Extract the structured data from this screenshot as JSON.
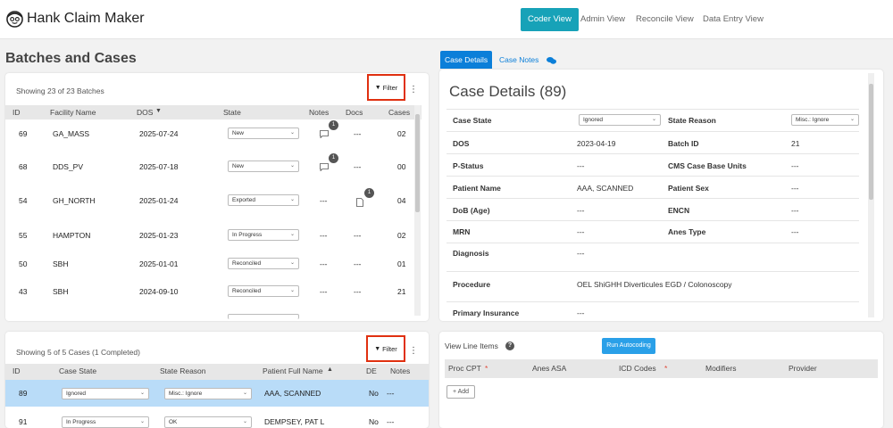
{
  "app": {
    "title": "Hank Claim Maker",
    "nav": [
      "Coder View",
      "Admin View",
      "Reconcile View",
      "Data Entry View"
    ]
  },
  "page": {
    "heading": "Batches and Cases"
  },
  "batches": {
    "showing": "Showing 23 of 23 Batches",
    "filter_label": "Filter",
    "columns": [
      "ID",
      "Facility Name",
      "DOS",
      "State",
      "Notes",
      "Docs",
      "Cases"
    ],
    "rows": [
      {
        "id": "69",
        "facility": "GA_MASS",
        "dos": "2025-07-24",
        "state": "New",
        "notes": "1",
        "docs": "---",
        "cases": "02"
      },
      {
        "id": "68",
        "facility": "DDS_PV",
        "dos": "2025-07-18",
        "state": "New",
        "notes": "1",
        "docs": "---",
        "cases": "00"
      },
      {
        "id": "54",
        "facility": "GH_NORTH",
        "dos": "2025-01-24",
        "state": "Exported",
        "notes": "---",
        "docs": "1",
        "cases": "04"
      },
      {
        "id": "55",
        "facility": "HAMPTON",
        "dos": "2025-01-23",
        "state": "In Progress",
        "notes": "---",
        "docs": "---",
        "cases": "02"
      },
      {
        "id": "50",
        "facility": "SBH",
        "dos": "2025-01-01",
        "state": "Reconciled",
        "notes": "---",
        "docs": "---",
        "cases": "01"
      },
      {
        "id": "43",
        "facility": "SBH",
        "dos": "2024-09-10",
        "state": "Reconciled",
        "notes": "---",
        "docs": "---",
        "cases": "21"
      }
    ]
  },
  "cases": {
    "showing": "Showing 5 of 5 Cases (1 Completed)",
    "filter_label": "Filter",
    "columns": [
      "ID",
      "Case State",
      "State Reason",
      "Patient Full Name",
      "DE",
      "Notes"
    ],
    "rows": [
      {
        "id": "89",
        "state": "Ignored",
        "reason": "Misc.: Ignore",
        "name": "AAA, SCANNED",
        "de": "No",
        "notes": "---"
      },
      {
        "id": "91",
        "state": "In Progress",
        "reason": "OK",
        "name": "DEMPSEY, PAT L",
        "de": "No",
        "notes": "---"
      }
    ]
  },
  "details": {
    "tabs": [
      "Case Details",
      "Case Notes"
    ],
    "title": "Case Details (89)",
    "fields": {
      "case_state_label": "Case State",
      "case_state": "Ignored",
      "state_reason_label": "State Reason",
      "state_reason": "Misc.: Ignore",
      "dos_label": "DOS",
      "dos": "2023-04-19",
      "batch_id_label": "Batch ID",
      "batch_id": "21",
      "pstatus_label": "P-Status",
      "pstatus": "---",
      "cms_label": "CMS Case Base Units",
      "cms": "---",
      "patient_name_label": "Patient Name",
      "patient_name": "AAA, SCANNED",
      "patient_sex_label": "Patient Sex",
      "patient_sex": "---",
      "dob_label": "DoB (Age)",
      "dob": "---",
      "encn_label": "ENCN",
      "encn": "---",
      "mrn_label": "MRN",
      "mrn": "---",
      "anes_label": "Anes Type",
      "anes": "---",
      "diagnosis_label": "Diagnosis",
      "diagnosis": "---",
      "procedure_label": "Procedure",
      "procedure": "OEL ShiGHH Diverticules EGD / Colonoscopy",
      "primary_ins_label": "Primary Insurance",
      "primary_ins": "---"
    }
  },
  "line_items": {
    "title": "View Line Items",
    "run_button": "Run Autocoding",
    "columns": [
      "Proc CPT",
      "Anes ASA",
      "ICD Codes",
      "Modifiers",
      "Provider"
    ],
    "required_mark": "*",
    "add_button": "+ Add"
  },
  "colors": {
    "accent": "#17a2b8",
    "tab_blue": "#0b7fd9",
    "selected_row": "#b9dcf8",
    "highlight": "#e03010"
  }
}
